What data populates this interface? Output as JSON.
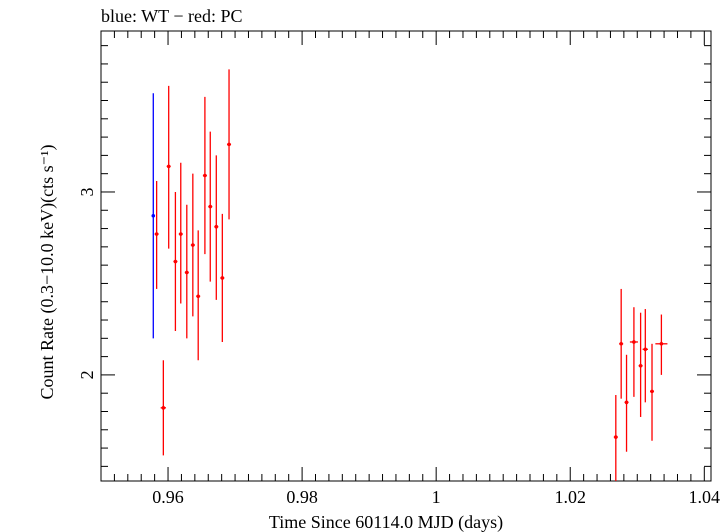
{
  "chart_data": {
    "type": "scatter",
    "title": "blue: WT − red: PC",
    "xlabel": "Time Since 60114.0 MJD (days)",
    "ylabel": "Count Rate (0.3−10.0 keV)(cts s⁻¹)",
    "xlim": [
      0.95,
      1.041
    ],
    "ylim": [
      1.42,
      3.88
    ],
    "x_major_ticks": [
      0.96,
      0.98,
      1.0,
      1.02,
      1.04
    ],
    "x_tick_labels": [
      "0.96",
      "0.98",
      "1",
      "1.02",
      "1.04"
    ],
    "y_major_ticks": [
      2,
      3
    ],
    "y_tick_labels": [
      "2",
      "3"
    ],
    "grid": false,
    "series": [
      {
        "color": "#0000ff",
        "points": [
          {
            "x": 0.9578,
            "y": 2.87,
            "xerr": 6e-05,
            "ylo": 2.2,
            "yhi": 3.54
          }
        ]
      },
      {
        "color": "#ff0000",
        "points": [
          {
            "x": 0.9583,
            "y": 2.77,
            "xerr": 0.0003,
            "ylo": 2.47,
            "yhi": 3.06
          },
          {
            "x": 0.9593,
            "y": 1.82,
            "xerr": 0.0004,
            "ylo": 1.56,
            "yhi": 2.08
          },
          {
            "x": 0.9601,
            "y": 3.14,
            "xerr": 0.0003,
            "ylo": 2.69,
            "yhi": 3.58
          },
          {
            "x": 0.9611,
            "y": 2.62,
            "xerr": 0.0003,
            "ylo": 2.24,
            "yhi": 3.0
          },
          {
            "x": 0.9619,
            "y": 2.77,
            "xerr": 0.0003,
            "ylo": 2.39,
            "yhi": 3.16
          },
          {
            "x": 0.9628,
            "y": 2.56,
            "xerr": 0.0003,
            "ylo": 2.2,
            "yhi": 2.93
          },
          {
            "x": 0.9637,
            "y": 2.71,
            "xerr": 0.0003,
            "ylo": 2.32,
            "yhi": 3.1
          },
          {
            "x": 0.9645,
            "y": 2.43,
            "xerr": 0.0003,
            "ylo": 2.08,
            "yhi": 2.79
          },
          {
            "x": 0.9655,
            "y": 3.09,
            "xerr": 0.0003,
            "ylo": 2.66,
            "yhi": 3.52
          },
          {
            "x": 0.9663,
            "y": 2.92,
            "xerr": 0.0003,
            "ylo": 2.51,
            "yhi": 3.33
          },
          {
            "x": 0.9672,
            "y": 2.81,
            "xerr": 0.0003,
            "ylo": 2.41,
            "yhi": 3.2
          },
          {
            "x": 0.9681,
            "y": 2.53,
            "xerr": 0.0003,
            "ylo": 2.18,
            "yhi": 2.88
          },
          {
            "x": 0.9691,
            "y": 3.26,
            "xerr": 0.0003,
            "ylo": 2.85,
            "yhi": 3.67
          },
          {
            "x": 1.0268,
            "y": 1.66,
            "xerr": 0.0003,
            "ylo": 1.42,
            "yhi": 1.89
          },
          {
            "x": 1.0276,
            "y": 2.17,
            "xerr": 0.0003,
            "ylo": 1.87,
            "yhi": 2.47
          },
          {
            "x": 1.0284,
            "y": 1.85,
            "xerr": 0.0003,
            "ylo": 1.58,
            "yhi": 2.11
          },
          {
            "x": 1.0295,
            "y": 2.18,
            "xerr": 0.0006,
            "ylo": 1.88,
            "yhi": 2.37
          },
          {
            "x": 1.0305,
            "y": 2.05,
            "xerr": 0.0003,
            "ylo": 1.77,
            "yhi": 2.34
          },
          {
            "x": 1.0312,
            "y": 2.14,
            "xerr": 0.0004,
            "ylo": 1.85,
            "yhi": 2.36
          },
          {
            "x": 1.0322,
            "y": 1.91,
            "xerr": 0.0003,
            "ylo": 1.64,
            "yhi": 2.17
          },
          {
            "x": 1.0336,
            "y": 2.17,
            "xerr": 0.0009,
            "ylo": 2.0,
            "yhi": 2.33
          }
        ]
      }
    ]
  }
}
